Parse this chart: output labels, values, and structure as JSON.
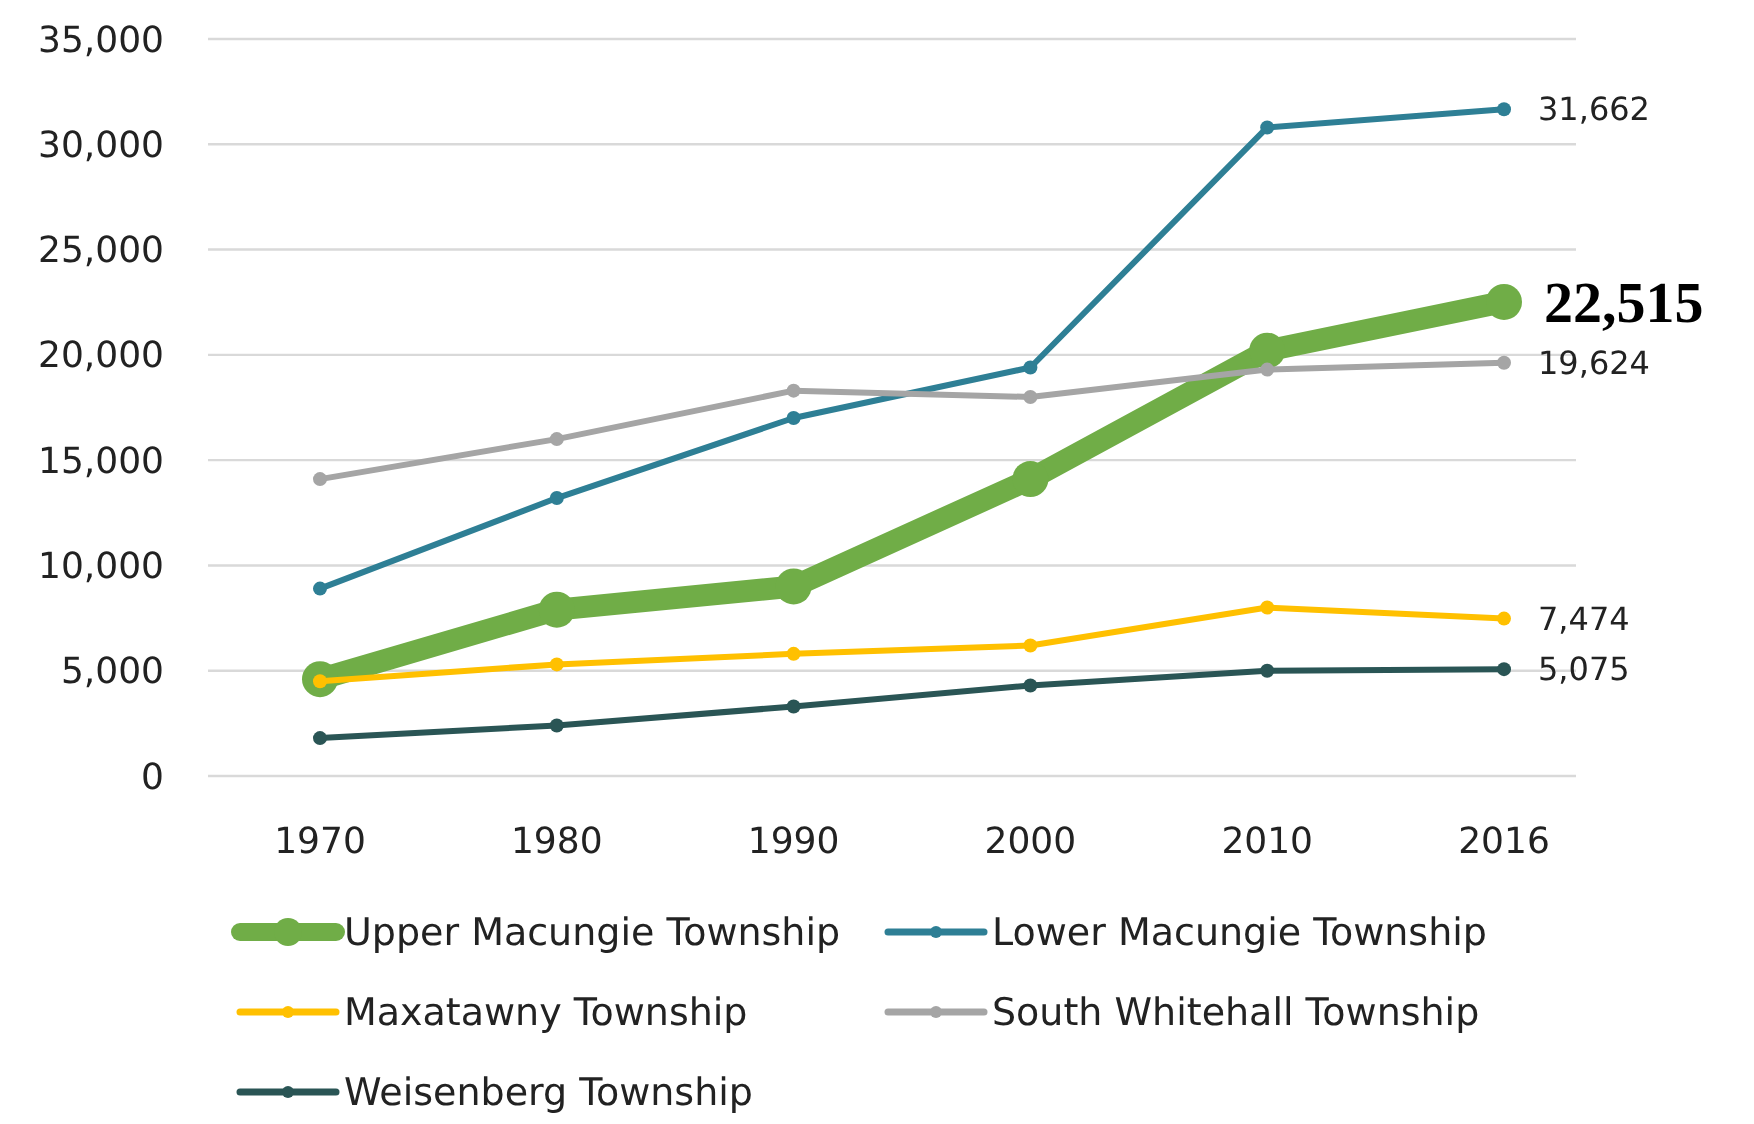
{
  "chart_data": {
    "type": "line",
    "categories": [
      "1970",
      "1980",
      "1990",
      "2000",
      "2010",
      "2016"
    ],
    "series": [
      {
        "name": "Upper Macungie Township",
        "color": "#70ad47",
        "values": [
          4600,
          7900,
          9000,
          14100,
          20200,
          22515
        ],
        "value_labels": [
          null,
          null,
          null,
          null,
          null,
          "22,515"
        ]
      },
      {
        "name": "Lower Macungie Township",
        "color": "#2e7f95",
        "values": [
          8900,
          13200,
          17000,
          19400,
          30800,
          31662
        ],
        "value_labels": [
          null,
          null,
          null,
          null,
          null,
          "31,662"
        ]
      },
      {
        "name": "Maxatawny Township",
        "color": "#ffc000",
        "values": [
          4500,
          5300,
          5800,
          6200,
          8000,
          7474
        ],
        "value_labels": [
          null,
          null,
          null,
          null,
          null,
          "7,474"
        ]
      },
      {
        "name": "South Whitehall Township",
        "color": "#a5a5a5",
        "values": [
          14100,
          16000,
          18300,
          18000,
          19300,
          19624
        ],
        "value_labels": [
          null,
          null,
          null,
          null,
          null,
          "19,624"
        ]
      },
      {
        "name": "Weisenberg Township",
        "color": "#2a5555",
        "values": [
          1800,
          2400,
          3300,
          4300,
          5000,
          5075
        ],
        "value_labels": [
          null,
          null,
          null,
          null,
          null,
          "5,075"
        ]
      }
    ],
    "ylim": [
      0,
      35000
    ],
    "yticks": [
      0,
      {
        "value": 5000,
        "label": "5,000"
      },
      {
        "value": 10000,
        "label": "10,000"
      },
      {
        "value": 15000,
        "label": "15,000"
      },
      {
        "value": 20000,
        "label": "20,000"
      },
      {
        "value": 25000,
        "label": "25,000"
      },
      {
        "value": 30000,
        "label": "30,000"
      },
      {
        "value": 35000,
        "label": "35,000"
      }
    ],
    "grid": "y",
    "legend": "bottom",
    "marker": "circle",
    "line_style": "solid"
  }
}
